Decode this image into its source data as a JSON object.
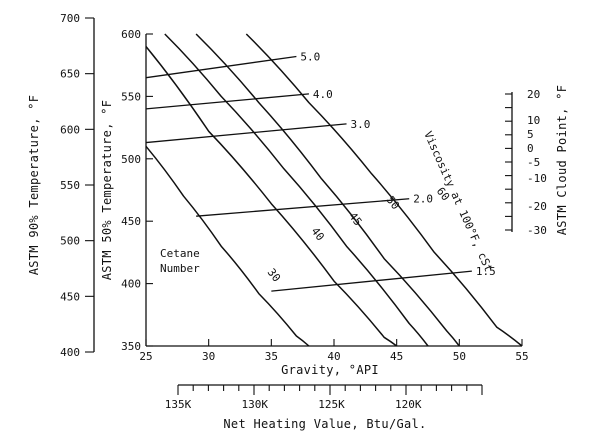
{
  "chart_data": {
    "type": "nomograph",
    "axes": {
      "astm90": {
        "label": "ASTM 90% Temperature, °F",
        "ticks": [
          400,
          450,
          500,
          550,
          600,
          650,
          700
        ],
        "range": [
          400,
          700
        ]
      },
      "astm50": {
        "label": "ASTM 50% Temperature, °F",
        "ticks": [
          350,
          400,
          450,
          500,
          550,
          600
        ],
        "range": [
          350,
          600
        ]
      },
      "gravity": {
        "label": "Gravity, °API",
        "ticks": [
          25,
          30,
          35,
          40,
          45,
          50,
          55
        ],
        "range": [
          25,
          55
        ]
      },
      "heating": {
        "label": "Net Heating Value, Btu/Gal.",
        "ticks": [
          "135K",
          "130K",
          "125K",
          "120K"
        ]
      },
      "cloud": {
        "label": "ASTM Cloud Point, °F",
        "ticks": [
          20,
          10,
          5,
          0,
          -5,
          -10,
          -20,
          -30
        ]
      }
    },
    "cetane": {
      "label_line1": "Cetane",
      "label_line2": "Number",
      "curves": [
        {
          "name": "30",
          "points": [
            [
              25,
              510
            ],
            [
              28,
              470
            ],
            [
              31,
              430
            ],
            [
              34,
              392
            ],
            [
              37,
              358
            ],
            [
              38,
              350
            ]
          ]
        },
        {
          "name": "40",
          "points": [
            [
              25,
              590
            ],
            [
              30,
              522
            ],
            [
              35,
              464
            ],
            [
              40,
              402
            ],
            [
              44,
              357
            ],
            [
              45,
              350
            ]
          ]
        },
        {
          "name": "45",
          "points": [
            [
              26.5,
              600
            ],
            [
              31,
              550
            ],
            [
              36,
              492
            ],
            [
              41,
              430
            ],
            [
              46,
              368
            ],
            [
              47.5,
              350
            ]
          ]
        },
        {
          "name": "50",
          "points": [
            [
              29,
              600
            ],
            [
              34,
              545
            ],
            [
              39,
              484
            ],
            [
              44,
              420
            ],
            [
              49,
              362
            ],
            [
              50,
              350
            ]
          ]
        },
        {
          "name": "60",
          "points": [
            [
              33,
              600
            ],
            [
              38,
              545
            ],
            [
              43,
              488
            ],
            [
              48,
              425
            ],
            [
              53,
              365
            ],
            [
              55,
              350
            ]
          ]
        }
      ]
    },
    "viscosity": {
      "label": "Viscosity at 100°F, cSt",
      "lines": [
        {
          "name": "5.0",
          "from": [
            25,
            565
          ],
          "to": [
            37,
            582
          ]
        },
        {
          "name": "4.0",
          "from": [
            25,
            540
          ],
          "to": [
            38,
            552
          ]
        },
        {
          "name": "3.0",
          "from": [
            25,
            513
          ],
          "to": [
            41,
            528
          ]
        },
        {
          "name": "2.0",
          "from": [
            29,
            454
          ],
          "to": [
            46,
            468
          ]
        },
        {
          "name": "1.5",
          "from": [
            35,
            394
          ],
          "to": [
            51,
            410
          ]
        }
      ]
    }
  }
}
